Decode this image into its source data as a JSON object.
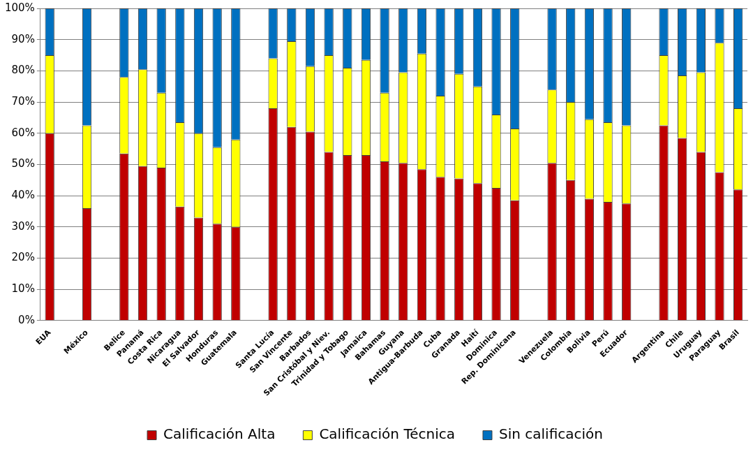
{
  "chart_data": {
    "type": "bar",
    "stacked": true,
    "grid": "y",
    "legend": "bottom",
    "categories": [
      "EUA",
      null,
      "México",
      null,
      "Belice",
      "Panamá",
      "Costa Rica",
      "Nicaragua",
      "El Salvador",
      "Honduras",
      "Guatemala",
      null,
      "Santa Lucía",
      "San Vincente",
      "Barbados",
      "San Cristóbal y Niev.",
      "Trinidad y Tobago",
      "Jamaica",
      "Bahamas",
      "Guyana",
      "Antigua-Barbuda",
      "Cuba",
      "Granada",
      "Haití",
      "Dominica",
      "Rep. Dominicana",
      null,
      "Venezuela",
      "Colombia",
      "Bolivia",
      "Perú",
      "Ecuador",
      null,
      "Argentina",
      "Chile",
      "Uruguay",
      "Paraguay",
      "Brasil"
    ],
    "ylim": [
      0,
      100
    ],
    "yticks": [
      {
        "value": 0,
        "label": "0%"
      },
      {
        "value": 10,
        "label": "10%"
      },
      {
        "value": 20,
        "label": "20%"
      },
      {
        "value": 30,
        "label": "30%"
      },
      {
        "value": 40,
        "label": "40%"
      },
      {
        "value": 50,
        "label": "50%"
      },
      {
        "value": 60,
        "label": "60%"
      },
      {
        "value": 70,
        "label": "70%"
      },
      {
        "value": 80,
        "label": "80%"
      },
      {
        "value": 90,
        "label": "90%"
      },
      {
        "value": 100,
        "label": "100%"
      }
    ],
    "series": [
      {
        "name": "Calificación Alta",
        "color": "#c00000",
        "values": [
          60,
          null,
          36,
          null,
          53.5,
          49.5,
          49,
          36.5,
          33,
          31,
          30,
          null,
          68,
          62,
          60.5,
          54,
          53,
          53,
          51,
          50.5,
          48.5,
          46,
          45.5,
          44,
          42.5,
          38.5,
          null,
          50.5,
          45,
          39,
          38,
          37.5,
          null,
          62.5,
          58.5,
          54,
          47.5,
          42
        ]
      },
      {
        "name": "Calificación Técnica",
        "color": "#ffff00",
        "values": [
          25,
          null,
          26.5,
          null,
          24.5,
          31,
          24,
          27,
          27,
          24.5,
          28,
          null,
          16,
          27.5,
          21,
          31,
          28,
          30.5,
          22,
          29,
          37,
          26,
          33.5,
          31,
          23.5,
          23,
          null,
          23.5,
          25,
          25.5,
          25.5,
          25,
          null,
          22.5,
          20,
          25.5,
          41.5,
          26
        ]
      },
      {
        "name": "Sin calificación",
        "color": "#0070c0",
        "values": [
          15,
          null,
          37.5,
          null,
          22,
          19.5,
          27,
          36.5,
          40,
          44.5,
          42,
          null,
          16,
          10.5,
          18.5,
          15,
          19,
          16.5,
          27,
          20.5,
          14.5,
          28,
          21,
          25,
          34,
          38.5,
          null,
          26,
          30,
          35.5,
          36.5,
          37.5,
          null,
          15,
          21.5,
          20.5,
          11,
          32
        ]
      }
    ]
  }
}
